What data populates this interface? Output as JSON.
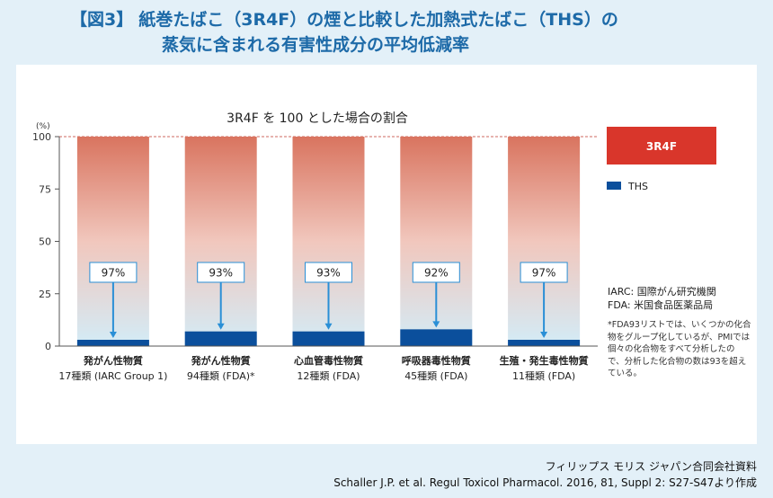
{
  "figure": {
    "tag": "【図3】",
    "title_line1": "紙巻たばこ（3R4F）の煙と比較した加熱式たばこ（THS）の",
    "title_line2": "蒸気に含まれる有害性成分の平均低減率"
  },
  "colors": {
    "ths_bar": "#0b4f9c",
    "reference_legend": "#d9362b",
    "gradient_top": "#d9745f",
    "gradient_mid": "#f1c7bd",
    "gradient_bottom": "#d3ecf7",
    "arrow": "#2a8fd6",
    "reference_line": "#c0392b"
  },
  "chart_data": {
    "type": "bar",
    "title": "3R4F を 100 とした場合の割合",
    "y_unit_label": "(%)",
    "ylim": [
      0,
      100
    ],
    "yticks": [
      0,
      25,
      50,
      75,
      100
    ],
    "reference_value": 100,
    "categories": [
      {
        "line1": "発がん性物質",
        "line2": "17種類 (IARC Group 1)"
      },
      {
        "line1": "発がん性物質",
        "line2": "94種類 (FDA)*"
      },
      {
        "line1": "心血管毒性物質",
        "line2": "12種類 (FDA)"
      },
      {
        "line1": "呼吸器毒性物質",
        "line2": "45種類 (FDA)"
      },
      {
        "line1": "生殖・発生毒性物質",
        "line2": "11種類 (FDA)"
      }
    ],
    "series": [
      {
        "name": "3R4F",
        "values": [
          100,
          100,
          100,
          100,
          100
        ]
      },
      {
        "name": "THS",
        "values": [
          3,
          7,
          7,
          8,
          3
        ]
      }
    ],
    "reduction_labels": [
      "97%",
      "93%",
      "93%",
      "92%",
      "97%"
    ],
    "legend": [
      "3R4F",
      "THS"
    ]
  },
  "notes": {
    "iarc": "IARC: 国際がん研究機関",
    "fda": "FDA: 米国食品医薬品局",
    "footnote": "*FDA93リストでは、いくつかの化合物をグループ化しているが、PMIでは個々の化合物をすべて分析したので、分析した化合物の数は93を超えている。"
  },
  "source": {
    "line1": "フィリップス モリス ジャパン合同会社資料",
    "line2": "Schaller J.P. et al. Regul Toxicol Pharmacol. 2016, 81, Suppl 2: S27-S47より作成"
  }
}
